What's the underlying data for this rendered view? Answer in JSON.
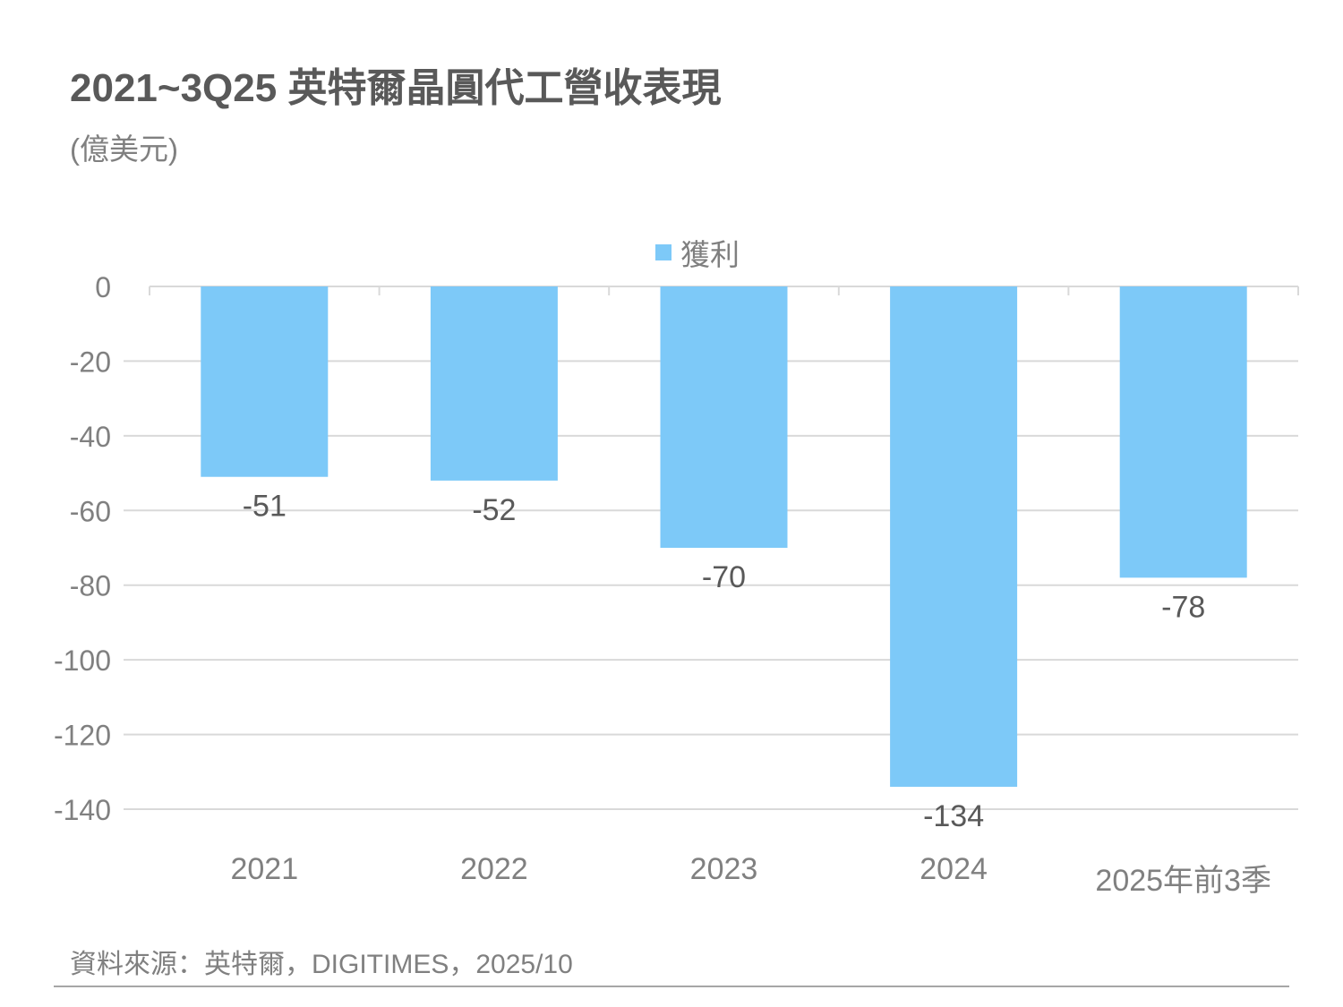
{
  "title": "2021~3Q25 英特爾晶圓代工營收表現",
  "subtitle": "(億美元)",
  "source": "資料來源：英特爾，DIGITIMES，2025/10",
  "colors": {
    "bar": "#7dc9f8",
    "grid": "#d9d9d9",
    "axis_text": "#808080",
    "label_text": "#595959"
  },
  "chart_data": {
    "type": "bar",
    "title": "2021~3Q25 英特爾晶圓代工營收表現",
    "ylabel": "(億美元)",
    "xlabel": "",
    "categories": [
      "2021",
      "2022",
      "2023",
      "2024",
      "2025年前3季"
    ],
    "series": [
      {
        "name": "獲利",
        "values": [
          -51,
          -52,
          -70,
          -134,
          -78
        ]
      }
    ],
    "data_labels": [
      "-51",
      "-52",
      "-70",
      "-134",
      "-78"
    ],
    "ylim": [
      -140,
      0
    ],
    "yticks": [
      0,
      -20,
      -40,
      -60,
      -80,
      -100,
      -120,
      -140
    ],
    "ytick_labels": [
      "0",
      "-20",
      "-40",
      "-60",
      "-80",
      "-100",
      "-120",
      "-140"
    ],
    "grid": true,
    "legend_position": "top-center"
  }
}
